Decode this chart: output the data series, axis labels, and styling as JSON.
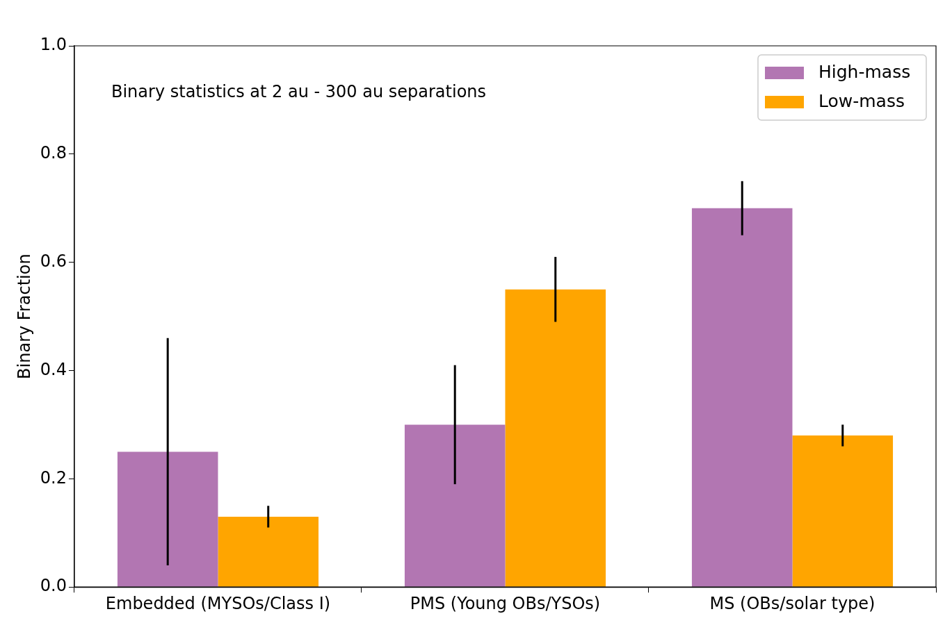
{
  "chart_data": {
    "type": "bar",
    "ylabel": "Binary Fraction",
    "annotations": [
      "Binary statistics at 2 au - 300 au separations"
    ],
    "categories": [
      "Embedded (MYSOs/Class I)",
      "PMS (Young OBs/YSOs)",
      "MS (OBs/solar type)"
    ],
    "series": [
      {
        "name": "High-mass",
        "color": "#b276b2",
        "values": [
          0.25,
          0.3,
          0.7
        ],
        "errors": [
          [
            0.04,
            0.46
          ],
          [
            0.19,
            0.41
          ],
          [
            0.65,
            0.75
          ]
        ]
      },
      {
        "name": "Low-mass",
        "color": "#ffa500",
        "values": [
          0.13,
          0.55,
          0.28
        ],
        "errors": [
          [
            0.11,
            0.15
          ],
          [
            0.49,
            0.61
          ],
          [
            0.26,
            0.3
          ]
        ]
      }
    ],
    "ylim": [
      0,
      1
    ],
    "yticks": [
      {
        "value": 0,
        "label": "0.0"
      },
      0.2,
      0.4,
      0.6,
      0.8,
      {
        "value": 1,
        "label": "1.0"
      }
    ],
    "grid": false,
    "legend": "top right"
  }
}
